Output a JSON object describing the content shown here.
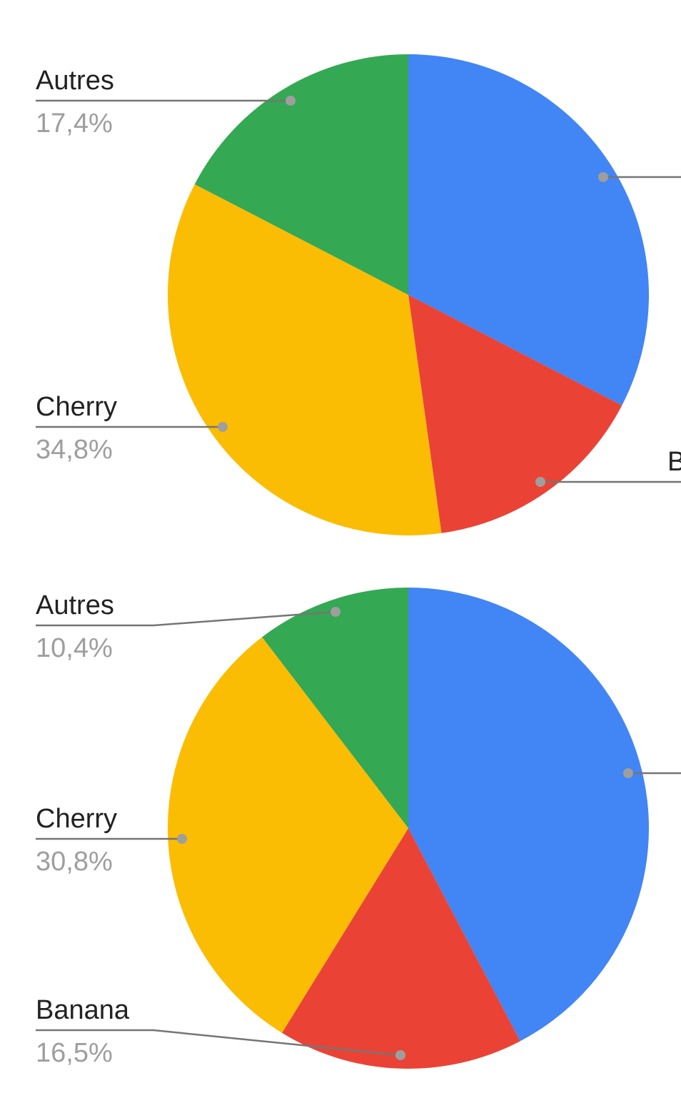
{
  "chart_data": [
    {
      "type": "pie",
      "categories": [
        null,
        "Banana",
        "Cherry",
        "Autres"
      ],
      "values": [
        32.6,
        15.2,
        34.8,
        17.4
      ],
      "value_labels": [
        null,
        null,
        "34,8%",
        "17,4%"
      ],
      "colors": [
        "#4285f4",
        "#ea4335",
        "#fbbc04",
        "#34a853"
      ]
    },
    {
      "type": "pie",
      "categories": [
        null,
        "Banana",
        "Cherry",
        "Autres"
      ],
      "values": [
        42.3,
        16.5,
        30.8,
        10.4
      ],
      "value_labels": [
        null,
        "16,5%",
        "30,8%",
        "10,4%"
      ],
      "colors": [
        "#4285f4",
        "#ea4335",
        "#fbbc04",
        "#34a853"
      ]
    }
  ]
}
